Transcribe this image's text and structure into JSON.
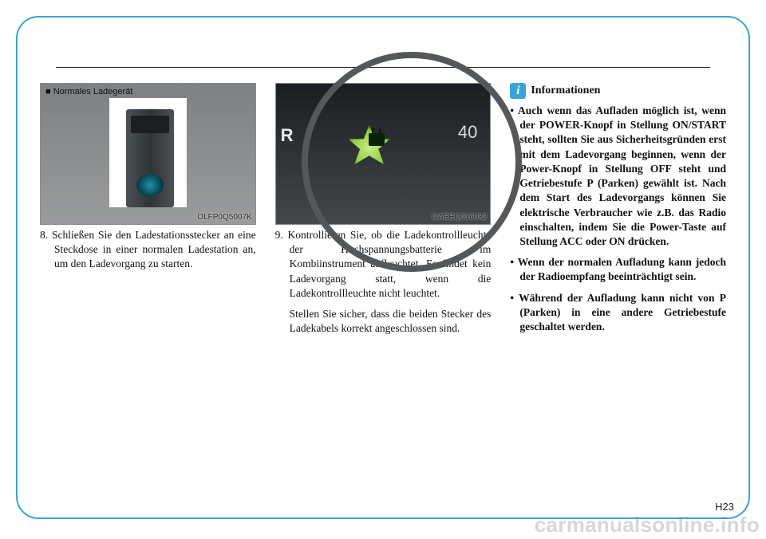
{
  "page": {
    "number": "H23",
    "watermark": "carmanualsonline.info"
  },
  "col1": {
    "figure_caption": "■ Normales Ladegerät",
    "figure_code": "OLFP0Q5007K",
    "step_num": "8.",
    "step_text": "Schließen Sie den Ladestationsstecker an eine Steckdose in einer normalen Ladestation an, um den Ladevorgang zu starten."
  },
  "col2": {
    "figure_code": "OAEEQ016032",
    "tick_label": "40",
    "r_letter": "R",
    "step_num": "9.",
    "step_text": "Kontrollieren Sie, ob die Ladekontrollleuchte der Hochspannungsbatterie im Kombiinstrument aufleuchtet. Es findet kein Ladevorgang statt, wenn die Ladekontrollleuchte nicht leuchtet.",
    "step_text2": "Stellen Sie sicher, dass die beiden Stecker des Ladekabels korrekt angeschlossen sind."
  },
  "col3": {
    "info_i": "i",
    "info_title": "Informationen",
    "b1": "• Auch wenn das Aufladen möglich ist, wenn der POWER-Knopf in Stellung ON/START steht, sollten Sie aus Sicherheitsgründen erst mit dem Ladevorgang beginnen, wenn der Power-Knopf in Stellung OFF steht und Getriebestufe P (Parken) gewählt ist. Nach dem Start des Ladevorgangs können Sie elektrische Verbraucher wie z.B. das Radio einschalten, indem Sie die Power-Taste auf Stellung ACC oder ON drücken.",
    "b2": "• Wenn der normalen Aufladung kann jedoch der Radioempfang beeinträchtigt sein.",
    "b3": "• Während der Aufladung kann nicht von P (Parken) in eine andere Getriebestufe geschaltet werden."
  }
}
